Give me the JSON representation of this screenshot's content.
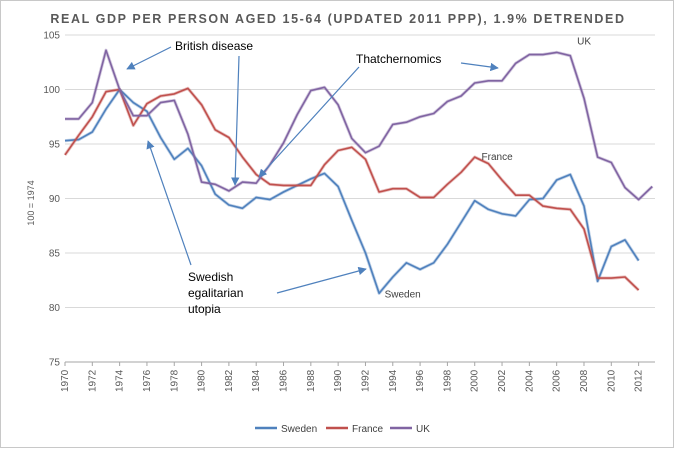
{
  "chart_data": {
    "type": "line",
    "title": "REAL GDP PER PERSON AGED 15-64 (UPDATED 2011 PPP), 1.9% DETRENDED",
    "ylabel": "100 = 1974",
    "xlabel": "",
    "ylim": [
      75,
      105
    ],
    "yticks": [
      75,
      80,
      85,
      90,
      95,
      100,
      105
    ],
    "xlim": [
      1970,
      2013
    ],
    "xticks": [
      1970,
      1972,
      1974,
      1976,
      1978,
      1980,
      1982,
      1984,
      1986,
      1988,
      1990,
      1992,
      1994,
      1996,
      1998,
      2000,
      2002,
      2004,
      2006,
      2008,
      2010,
      2012
    ],
    "grid": "horizontal",
    "legend": "bottom-center",
    "x": [
      1970,
      1971,
      1972,
      1973,
      1974,
      1975,
      1976,
      1977,
      1978,
      1979,
      1980,
      1981,
      1982,
      1983,
      1984,
      1985,
      1986,
      1987,
      1988,
      1989,
      1990,
      1991,
      1992,
      1993,
      1994,
      1995,
      1996,
      1997,
      1998,
      1999,
      2000,
      2001,
      2002,
      2003,
      2004,
      2005,
      2006,
      2007,
      2008,
      2009,
      2010,
      2011,
      2012
    ],
    "series": [
      {
        "name": "Sweden",
        "color": "#4f81bd",
        "x": [
          1970,
          1971,
          1972,
          1973,
          1974,
          1975,
          1976,
          1977,
          1978,
          1979,
          1980,
          1981,
          1982,
          1983,
          1984,
          1985,
          1986,
          1987,
          1988,
          1989,
          1990,
          1991,
          1992,
          1993,
          1994,
          1995,
          1996,
          1997,
          1998,
          1999,
          2000,
          2001,
          2002,
          2003,
          2004,
          2005,
          2006,
          2007,
          2008,
          2009,
          2010,
          2011,
          2012
        ],
        "values": [
          95.3,
          95.4,
          96.1,
          98.2,
          100.0,
          98.8,
          98.0,
          95.6,
          93.6,
          94.6,
          93.0,
          90.4,
          89.4,
          89.1,
          90.1,
          89.9,
          90.6,
          91.2,
          91.8,
          92.3,
          91.1,
          88.0,
          85.0,
          81.3,
          82.8,
          84.1,
          83.5,
          84.1,
          85.8,
          87.8,
          89.8,
          89.0,
          88.6,
          88.4,
          89.9,
          90.0,
          91.7,
          92.2,
          89.3,
          82.4,
          85.6,
          86.2,
          84.3
        ]
      },
      {
        "name": "France",
        "color": "#c0504d",
        "x": [
          1970,
          1971,
          1972,
          1973,
          1974,
          1975,
          1976,
          1977,
          1978,
          1979,
          1980,
          1981,
          1982,
          1983,
          1984,
          1985,
          1986,
          1987,
          1988,
          1989,
          1990,
          1991,
          1992,
          1993,
          1994,
          1995,
          1996,
          1997,
          1998,
          1999,
          2000,
          2001,
          2002,
          2003,
          2004,
          2005,
          2006,
          2007,
          2008,
          2009,
          2010,
          2011,
          2012
        ],
        "values": [
          94.0,
          95.8,
          97.5,
          99.8,
          100.0,
          96.7,
          98.7,
          99.4,
          99.6,
          100.1,
          98.6,
          96.3,
          95.6,
          93.8,
          92.2,
          91.3,
          91.2,
          91.2,
          91.2,
          93.1,
          94.4,
          94.7,
          93.6,
          90.6,
          90.9,
          90.9,
          90.1,
          90.1,
          91.3,
          92.4,
          93.8,
          93.2,
          91.7,
          90.3,
          90.3,
          89.3,
          89.1,
          89.0,
          87.2,
          82.7,
          82.7,
          82.8,
          81.6
        ]
      },
      {
        "name": "UK",
        "color": "#8064a2",
        "x": [
          1970,
          1971,
          1972,
          1973,
          1974,
          1975,
          1976,
          1977,
          1978,
          1979,
          1980,
          1981,
          1982,
          1983,
          1984,
          1985,
          1986,
          1987,
          1988,
          1989,
          1990,
          1991,
          1992,
          1993,
          1994,
          1995,
          1996,
          1997,
          1998,
          1999,
          2000,
          2001,
          2002,
          2003,
          2004,
          2005,
          2006,
          2007,
          2008,
          2009,
          2010,
          2011,
          2012,
          2013
        ],
        "values": [
          97.3,
          97.3,
          98.8,
          103.6,
          100.0,
          97.6,
          97.6,
          98.8,
          99.0,
          95.9,
          91.5,
          91.3,
          90.7,
          91.5,
          91.4,
          93.1,
          95.1,
          97.7,
          99.9,
          100.2,
          98.6,
          95.5,
          94.2,
          94.8,
          96.8,
          97.0,
          97.5,
          97.8,
          98.9,
          99.4,
          100.6,
          100.8,
          100.8,
          102.4,
          103.2,
          103.2,
          103.4,
          103.1,
          99.2,
          93.8,
          93.3,
          91.0,
          89.9,
          91.1
        ]
      }
    ],
    "series_labels": [
      "Sweden",
      "France",
      "UK"
    ],
    "annotations": [
      {
        "text": "British disease"
      },
      {
        "text": "Thatchernomics"
      },
      {
        "text": "Swedish egalitarian utopia",
        "lines": [
          "Swedish",
          "egalitarian",
          "utopia"
        ]
      }
    ]
  }
}
